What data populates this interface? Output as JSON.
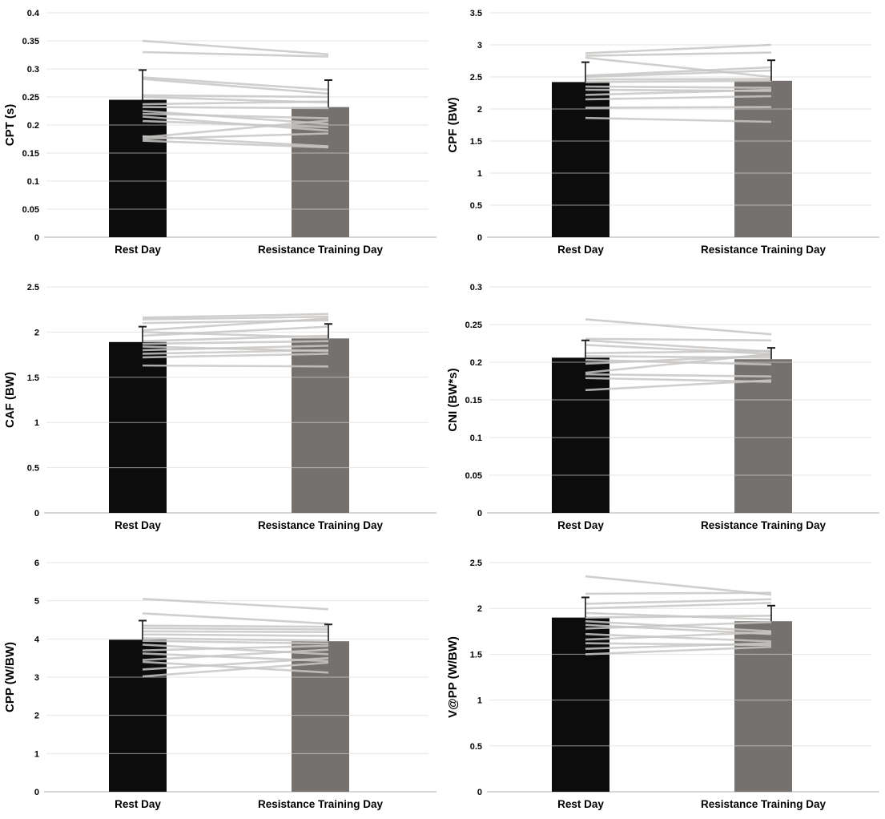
{
  "figure": {
    "description": "Six paired bar charts comparing countermovement-jump variables on a Rest Day versus a Resistance Training Day, with light gray lines showing individual participant pairs and T-shaped upper error bars on each bar",
    "background_color": "#ffffff",
    "rest_bar_color": "#0c0c0c",
    "training_bar_color": "#75716e",
    "participant_line_color": "#c9c7c5",
    "error_bar_color": "#1a1a1a",
    "axis_line_color": "#c9c9c9",
    "gridline_color": "#d9d9d9",
    "categories": [
      "Rest Day",
      "Resistance Training Day"
    ]
  },
  "chart_data": [
    {
      "id": "cpt",
      "type": "bar",
      "title": "",
      "ylabel": "CPT (s)",
      "xlabel": "",
      "categories": [
        "Rest Day",
        "Resistance Training Day"
      ],
      "values": [
        0.245,
        0.232
      ],
      "error_upper": [
        0.298,
        0.28
      ],
      "ylim": [
        0,
        0.4
      ],
      "ytick_step": 0.05,
      "legend": "none",
      "grid": "faint-horizontal",
      "paired_lines": [
        [
          0.35,
          0.326
        ],
        [
          0.33,
          0.322
        ],
        [
          0.285,
          0.263
        ],
        [
          0.282,
          0.256
        ],
        [
          0.253,
          0.25
        ],
        [
          0.25,
          0.24
        ],
        [
          0.237,
          0.242
        ],
        [
          0.232,
          0.23
        ],
        [
          0.225,
          0.202
        ],
        [
          0.22,
          0.212
        ],
        [
          0.215,
          0.19
        ],
        [
          0.207,
          0.196
        ],
        [
          0.178,
          0.208
        ],
        [
          0.18,
          0.162
        ],
        [
          0.175,
          0.185
        ],
        [
          0.172,
          0.16
        ]
      ]
    },
    {
      "id": "cpf",
      "type": "bar",
      "title": "",
      "ylabel": "CPF (BW)",
      "xlabel": "",
      "categories": [
        "Rest Day",
        "Resistance Training Day"
      ],
      "values": [
        2.42,
        2.44
      ],
      "error_upper": [
        2.73,
        2.76
      ],
      "ylim": [
        0,
        3.5
      ],
      "ytick_step": 0.5,
      "legend": "none",
      "grid": "faint-horizontal",
      "paired_lines": [
        [
          2.87,
          3.0
        ],
        [
          2.83,
          2.88
        ],
        [
          2.8,
          2.5
        ],
        [
          2.52,
          2.65
        ],
        [
          2.5,
          2.6
        ],
        [
          2.46,
          2.47
        ],
        [
          2.42,
          2.44
        ],
        [
          2.35,
          2.33
        ],
        [
          2.3,
          2.28
        ],
        [
          2.22,
          2.3
        ],
        [
          2.15,
          2.2
        ],
        [
          2.02,
          2.03
        ],
        [
          1.86,
          1.8
        ]
      ]
    },
    {
      "id": "caf",
      "type": "bar",
      "title": "",
      "ylabel": "CAF (BW)",
      "xlabel": "",
      "categories": [
        "Rest Day",
        "Resistance Training Day"
      ],
      "values": [
        1.89,
        1.93
      ],
      "error_upper": [
        2.06,
        2.09
      ],
      "ylim": [
        0,
        2.5
      ],
      "ytick_step": 0.5,
      "legend": "none",
      "grid": "faint-horizontal",
      "paired_lines": [
        [
          2.16,
          2.2
        ],
        [
          2.14,
          2.17
        ],
        [
          2.1,
          2.13
        ],
        [
          2.02,
          2.15
        ],
        [
          2.0,
          1.94
        ],
        [
          1.96,
          2.06
        ],
        [
          1.9,
          1.96
        ],
        [
          1.87,
          1.9
        ],
        [
          1.84,
          1.79
        ],
        [
          1.8,
          1.85
        ],
        [
          1.76,
          1.8
        ],
        [
          1.72,
          1.76
        ],
        [
          1.63,
          1.62
        ]
      ]
    },
    {
      "id": "cni",
      "type": "bar",
      "title": "",
      "ylabel": "CNI (BW*s)",
      "xlabel": "",
      "categories": [
        "Rest Day",
        "Resistance Training Day"
      ],
      "values": [
        0.206,
        0.204
      ],
      "error_upper": [
        0.229,
        0.219
      ],
      "ylim": [
        0,
        0.3
      ],
      "ytick_step": 0.05,
      "legend": "none",
      "grid": "faint-horizontal",
      "paired_lines": [
        [
          0.257,
          0.237
        ],
        [
          0.231,
          0.229
        ],
        [
          0.229,
          0.214
        ],
        [
          0.223,
          0.211
        ],
        [
          0.212,
          0.215
        ],
        [
          0.208,
          0.206
        ],
        [
          0.203,
          0.197
        ],
        [
          0.198,
          0.209
        ],
        [
          0.186,
          0.211
        ],
        [
          0.184,
          0.181
        ],
        [
          0.179,
          0.174
        ],
        [
          0.163,
          0.176
        ]
      ]
    },
    {
      "id": "cpp",
      "type": "bar",
      "title": "",
      "ylabel": "CPP (W/BW)",
      "xlabel": "",
      "categories": [
        "Rest Day",
        "Resistance Training Day"
      ],
      "values": [
        3.98,
        3.94
      ],
      "error_upper": [
        4.48,
        4.38
      ],
      "ylim": [
        0,
        6
      ],
      "ytick_step": 1,
      "legend": "none",
      "grid": "faint-horizontal",
      "paired_lines": [
        [
          5.05,
          4.78
        ],
        [
          4.67,
          4.4
        ],
        [
          4.35,
          4.32
        ],
        [
          4.28,
          4.25
        ],
        [
          4.2,
          4.18
        ],
        [
          4.12,
          4.08
        ],
        [
          4.02,
          3.95
        ],
        [
          3.95,
          3.88
        ],
        [
          3.85,
          3.6
        ],
        [
          3.7,
          3.82
        ],
        [
          3.62,
          3.42
        ],
        [
          3.45,
          3.72
        ],
        [
          3.4,
          3.12
        ],
        [
          3.2,
          3.5
        ],
        [
          3.02,
          3.38
        ]
      ]
    },
    {
      "id": "vpp",
      "type": "bar",
      "title": "",
      "ylabel": "V@PP (W/BW)",
      "xlabel": "",
      "categories": [
        "Rest Day",
        "Resistance Training Day"
      ],
      "values": [
        1.9,
        1.86
      ],
      "error_upper": [
        2.12,
        2.03
      ],
      "ylim": [
        0,
        2.5
      ],
      "ytick_step": 0.5,
      "legend": "none",
      "grid": "faint-horizontal",
      "paired_lines": [
        [
          2.35,
          2.15
        ],
        [
          2.16,
          2.17
        ],
        [
          2.05,
          2.1
        ],
        [
          2.0,
          2.06
        ],
        [
          1.95,
          1.88
        ],
        [
          1.9,
          1.92
        ],
        [
          1.86,
          1.75
        ],
        [
          1.82,
          1.72
        ],
        [
          1.78,
          1.85
        ],
        [
          1.72,
          1.64
        ],
        [
          1.66,
          1.74
        ],
        [
          1.62,
          1.6
        ],
        [
          1.56,
          1.62
        ],
        [
          1.5,
          1.58
        ]
      ]
    }
  ]
}
